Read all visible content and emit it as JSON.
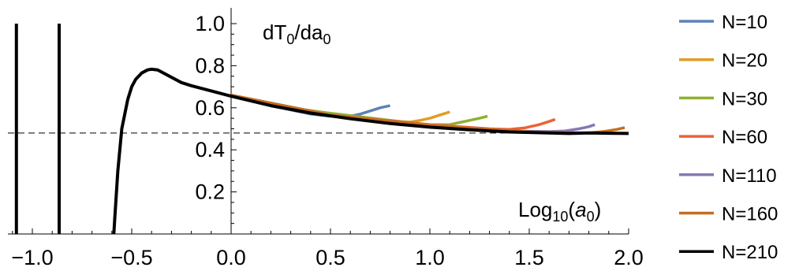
{
  "chart_data": {
    "type": "line",
    "ylabel": "dT0/da0",
    "xlabel": "Log10(a0)",
    "xlim": [
      -1.15,
      2.0
    ],
    "ylim": [
      0.0,
      1.0
    ],
    "x_ticks": [
      "-1.0",
      "-0.5",
      "0.0",
      "0.5",
      "1.0",
      "1.5",
      "2.0"
    ],
    "x_tick_values": [
      -1.0,
      -0.5,
      0.0,
      0.5,
      1.0,
      1.5,
      2.0
    ],
    "y_ticks": [
      "0.2",
      "0.4",
      "0.6",
      "0.8",
      "1.0"
    ],
    "y_tick_values": [
      0.2,
      0.4,
      0.6,
      0.8,
      1.0
    ],
    "reference_line": {
      "y": 0.48,
      "style": "dashed"
    },
    "legend_position": "right",
    "series": [
      {
        "name": "N=10",
        "color": "#5e81b5",
        "x": [
          0.0,
          0.2,
          0.4,
          0.5,
          0.6,
          0.65,
          0.7,
          0.75,
          0.8
        ],
        "y": [
          0.66,
          0.61,
          0.57,
          0.56,
          0.56,
          0.57,
          0.585,
          0.6,
          0.61
        ]
      },
      {
        "name": "N=20",
        "color": "#e19c24",
        "x": [
          0.0,
          0.3,
          0.6,
          0.8,
          0.9,
          0.95,
          1.0,
          1.05,
          1.1
        ],
        "y": [
          0.66,
          0.6,
          0.56,
          0.535,
          0.532,
          0.54,
          0.55,
          0.565,
          0.58
        ]
      },
      {
        "name": "N=30",
        "color": "#8fb032",
        "x": [
          0.0,
          0.4,
          0.8,
          1.0,
          1.1,
          1.15,
          1.2,
          1.25,
          1.29
        ],
        "y": [
          0.66,
          0.585,
          0.54,
          0.52,
          0.52,
          0.53,
          0.54,
          0.55,
          0.56
        ]
      },
      {
        "name": "N=60",
        "color": "#eb6235",
        "x": [
          0.0,
          0.5,
          1.0,
          1.3,
          1.4,
          1.48,
          1.55,
          1.6,
          1.63
        ],
        "y": [
          0.66,
          0.565,
          0.52,
          0.5,
          0.497,
          0.505,
          0.52,
          0.535,
          0.545
        ]
      },
      {
        "name": "N=110",
        "color": "#8778b3",
        "x": [
          0.0,
          0.5,
          1.0,
          1.4,
          1.6,
          1.68,
          1.75,
          1.8,
          1.83
        ],
        "y": [
          0.66,
          0.565,
          0.515,
          0.49,
          0.487,
          0.49,
          0.5,
          0.51,
          0.52
        ]
      },
      {
        "name": "N=160",
        "color": "#c56e1a",
        "x": [
          0.0,
          0.5,
          1.0,
          1.5,
          1.8,
          1.88,
          1.94,
          1.98
        ],
        "y": [
          0.66,
          0.565,
          0.515,
          0.485,
          0.48,
          0.488,
          0.497,
          0.506
        ]
      },
      {
        "name": "N=210",
        "color": "#000000",
        "segments": [
          {
            "x": [
              -1.08,
              -1.08
            ],
            "y": [
              0.0,
              1.0
            ]
          },
          {
            "x": [
              -0.865,
              -0.865
            ],
            "y": [
              1.0,
              0.0
            ]
          },
          {
            "x": [
              -0.59,
              -0.585,
              -0.57,
              -0.55,
              -0.52,
              -0.5,
              -0.48,
              -0.45,
              -0.42,
              -0.4,
              -0.37,
              -0.35,
              -0.3,
              -0.25,
              -0.2,
              -0.1,
              0.0,
              0.2,
              0.4,
              0.6,
              0.8,
              1.0,
              1.2,
              1.4,
              1.6,
              1.7,
              1.8,
              1.9,
              2.0
            ],
            "y": [
              0.0,
              0.08,
              0.3,
              0.5,
              0.64,
              0.7,
              0.735,
              0.765,
              0.78,
              0.783,
              0.78,
              0.77,
              0.745,
              0.72,
              0.705,
              0.68,
              0.655,
              0.61,
              0.575,
              0.548,
              0.525,
              0.508,
              0.495,
              0.485,
              0.48,
              0.478,
              0.48,
              0.479,
              0.478
            ]
          }
        ]
      }
    ]
  }
}
